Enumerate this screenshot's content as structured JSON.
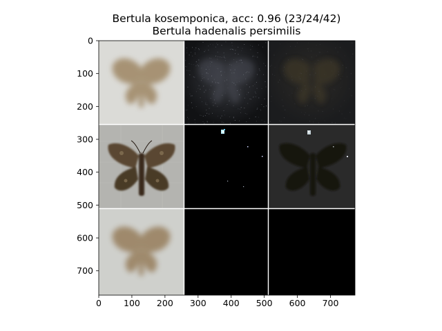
{
  "figure": {
    "title_line1": "Bertula kosemponica, acc: 0.96 (23/24/42)",
    "title_line2": "Bertula hadenalis persimilis"
  },
  "chart_data": {
    "type": "image",
    "title": "Bertula kosemponica, acc: 0.96 (23/24/42)\nBertula hadenalis persimilis",
    "xlim": [
      0,
      774
    ],
    "ylim": [
      774,
      0
    ],
    "x_ticks": [
      0,
      100,
      200,
      300,
      400,
      500,
      600,
      700
    ],
    "y_ticks": [
      0,
      100,
      200,
      300,
      400,
      500,
      600,
      700
    ],
    "grid": {
      "rows": 3,
      "cols": 3,
      "tile_size": 256,
      "separator_px": 2
    },
    "tiles": [
      {
        "row": 0,
        "col": 0,
        "content": "blurred moth image",
        "bg": "#d6d6d2",
        "subject": "#9a8262"
      },
      {
        "row": 0,
        "col": 1,
        "content": "noisy dark saliency map",
        "bg": "#131416",
        "subject": "#3c3e44"
      },
      {
        "row": 0,
        "col": 2,
        "content": "dark overlay of moth",
        "bg": "#1f2023",
        "subject": "#3a3326"
      },
      {
        "row": 1,
        "col": 0,
        "content": "moth photograph",
        "bg": "#b5b5b1",
        "subject": "#4f3e27"
      },
      {
        "row": 1,
        "col": 1,
        "content": "sparse saliency map",
        "bg": "#000000",
        "subject": "#e8f8ff"
      },
      {
        "row": 1,
        "col": 2,
        "content": "dark overlay of moth",
        "bg": "#2b2b2b",
        "subject": "#1b1712"
      },
      {
        "row": 2,
        "col": 0,
        "content": "blurred moth image",
        "bg": "#d0d0cc",
        "subject": "#9a8262"
      },
      {
        "row": 2,
        "col": 1,
        "content": "black",
        "bg": "#000000"
      },
      {
        "row": 2,
        "col": 2,
        "content": "black",
        "bg": "#000000"
      }
    ]
  }
}
